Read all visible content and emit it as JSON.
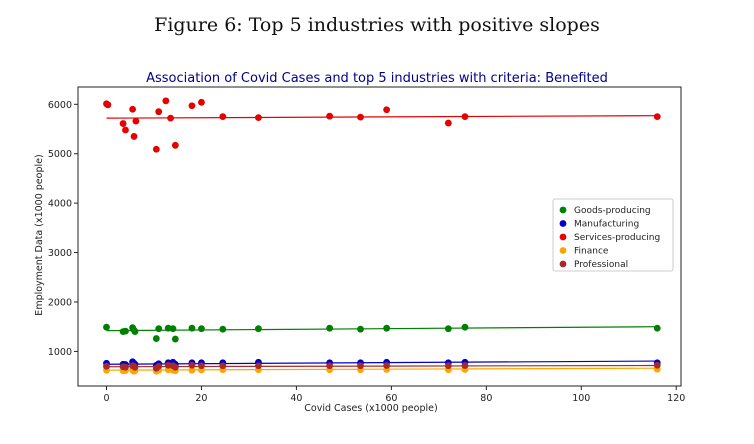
{
  "figure_caption": "Figure 6: Top 5 industries with positive slopes",
  "chart_data": {
    "type": "scatter",
    "title": "Association of Covid Cases and top 5 industries with criteria: Benefited",
    "xlabel": "Covid Cases (x1000 people)",
    "ylabel": "Employment Data (x1000 people)",
    "xlim": [
      -6,
      121
    ],
    "ylim": [
      300,
      6350
    ],
    "xticks": [
      0,
      20,
      40,
      60,
      80,
      100,
      120
    ],
    "yticks": [
      1000,
      2000,
      3000,
      4000,
      5000,
      6000
    ],
    "grid": false,
    "legend_position": "center-right",
    "series": [
      {
        "name": "Goods-producing",
        "color": "#008000",
        "x": [
          0,
          3.5,
          4,
          5.5,
          5.8,
          6,
          10.5,
          11,
          13,
          14,
          14.5,
          18,
          20,
          24.5,
          32,
          47,
          53.5,
          59,
          72,
          75.5,
          116
        ],
        "y": [
          1490,
          1400,
          1410,
          1480,
          1430,
          1400,
          1260,
          1460,
          1470,
          1460,
          1250,
          1470,
          1460,
          1450,
          1460,
          1470,
          1450,
          1470,
          1460,
          1490,
          1470
        ],
        "trend": [
          1420,
          1500
        ]
      },
      {
        "name": "Manufacturing",
        "color": "#0000cd",
        "x": [
          0,
          3.5,
          4,
          5.5,
          5.8,
          6,
          10.5,
          11,
          13,
          14,
          14.5,
          18,
          20,
          24.5,
          32,
          47,
          53.5,
          59,
          72,
          75.5,
          116
        ],
        "y": [
          760,
          740,
          735,
          790,
          760,
          740,
          720,
          750,
          770,
          780,
          740,
          770,
          770,
          770,
          780,
          770,
          770,
          780,
          770,
          780,
          770
        ],
        "trend": [
          740,
          805
        ]
      },
      {
        "name": "Services-producing",
        "color": "#e60000",
        "x": [
          0,
          0.3,
          3.5,
          4,
          5.5,
          5.8,
          6.2,
          10.5,
          11,
          12.5,
          13.5,
          14.5,
          18,
          20,
          24.5,
          32,
          47,
          53.5,
          59,
          72,
          75.5,
          116
        ],
        "y": [
          6010,
          5990,
          5610,
          5480,
          5900,
          5350,
          5660,
          5090,
          5850,
          6070,
          5720,
          5170,
          5970,
          6040,
          5750,
          5730,
          5760,
          5740,
          5890,
          5620,
          5750,
          5750
        ],
        "trend": [
          5720,
          5770
        ]
      },
      {
        "name": "Finance",
        "color": "#ffa500",
        "x": [
          0,
          3.5,
          4,
          5.5,
          5.8,
          6,
          10.5,
          11,
          13,
          14,
          14.5,
          18,
          20,
          24.5,
          32,
          47,
          53.5,
          59,
          72,
          75.5,
          116
        ],
        "y": [
          620,
          610,
          615,
          625,
          600,
          610,
          600,
          620,
          630,
          620,
          610,
          620,
          625,
          630,
          630,
          630,
          630,
          635,
          630,
          635,
          640
        ],
        "trend": [
          620,
          660
        ]
      },
      {
        "name": "Professional",
        "color": "#a52a2a",
        "x": [
          0,
          3.5,
          4,
          5.5,
          5.8,
          6,
          10.5,
          11,
          13,
          14,
          14.5,
          18,
          20,
          24.5,
          32,
          47,
          53.5,
          59,
          72,
          75.5,
          116
        ],
        "y": [
          700,
          690,
          680,
          710,
          700,
          680,
          660,
          700,
          720,
          710,
          680,
          720,
          710,
          710,
          710,
          710,
          710,
          715,
          710,
          715,
          720
        ],
        "trend": [
          690,
          715
        ]
      }
    ]
  }
}
